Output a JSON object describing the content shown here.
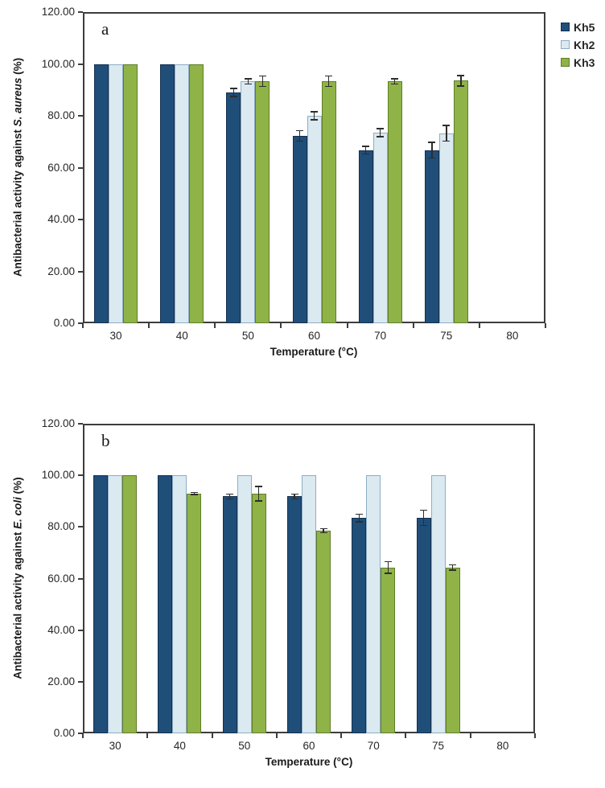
{
  "legend": {
    "items": [
      {
        "label": "Kh5",
        "color": "#1f4e79",
        "border": "#13304f"
      },
      {
        "label": "Kh2",
        "color": "#dbe9f1",
        "border": "#8fadc4"
      },
      {
        "label": "Kh3",
        "color": "#8fb347",
        "border": "#5f7d2a"
      }
    ]
  },
  "chart_data": [
    {
      "type": "bar",
      "panel_label": "a",
      "ylabel_prefix": "Antibacterial activity against ",
      "ylabel_italic": "S. aureus",
      "ylabel_suffix": " (%)",
      "xlabel": "Temperature (°C)",
      "ylim": [
        0,
        120
      ],
      "ytick_step": 20,
      "ytick_labels": [
        "0.00",
        "20.00",
        "40.00",
        "60.00",
        "80.00",
        "100.00",
        "120.00"
      ],
      "categories": [
        "30",
        "40",
        "50",
        "60",
        "70",
        "75",
        "80"
      ],
      "grid": false,
      "legend_position": "top-right-outside",
      "series": [
        {
          "name": "Kh5",
          "values": [
            100,
            100,
            89.0,
            72.3,
            66.7,
            66.7,
            0
          ],
          "errors": [
            0,
            0,
            1.5,
            2.0,
            1.5,
            3.0,
            0
          ]
        },
        {
          "name": "Kh2",
          "values": [
            100,
            100,
            93.3,
            80.0,
            73.5,
            73.3,
            0
          ],
          "errors": [
            0,
            0,
            1.0,
            1.5,
            1.5,
            3.0,
            0
          ]
        },
        {
          "name": "Kh3",
          "values": [
            100,
            100,
            93.3,
            93.3,
            93.3,
            93.5,
            0
          ],
          "errors": [
            0,
            0,
            2.0,
            2.0,
            1.0,
            2.0,
            0
          ]
        }
      ]
    },
    {
      "type": "bar",
      "panel_label": "b",
      "ylabel_prefix": "Antibacterial activity against ",
      "ylabel_italic": "E. coli",
      "ylabel_suffix": " (%)",
      "xlabel": "Temperature (°C)",
      "ylim": [
        0,
        120
      ],
      "ytick_step": 20,
      "ytick_labels": [
        "0.00",
        "20.00",
        "40.00",
        "60.00",
        "80.00",
        "100.00",
        "120.00"
      ],
      "categories": [
        "30",
        "40",
        "50",
        "60",
        "70",
        "75",
        "80"
      ],
      "grid": false,
      "legend_position": "none",
      "series": [
        {
          "name": "Kh5",
          "values": [
            100,
            100,
            91.8,
            91.8,
            83.5,
            83.5,
            0
          ],
          "errors": [
            0,
            0,
            1.0,
            1.0,
            1.5,
            3.0,
            0
          ]
        },
        {
          "name": "Kh2",
          "values": [
            100,
            100,
            100,
            100,
            100,
            100,
            0
          ],
          "errors": [
            0,
            0,
            0,
            0,
            0,
            0,
            0
          ]
        },
        {
          "name": "Kh3",
          "values": [
            100,
            92.9,
            92.9,
            78.6,
            64.3,
            64.3,
            0
          ],
          "errors": [
            0,
            0.4,
            2.8,
            0.8,
            2.2,
            1.0,
            0
          ]
        }
      ]
    }
  ]
}
